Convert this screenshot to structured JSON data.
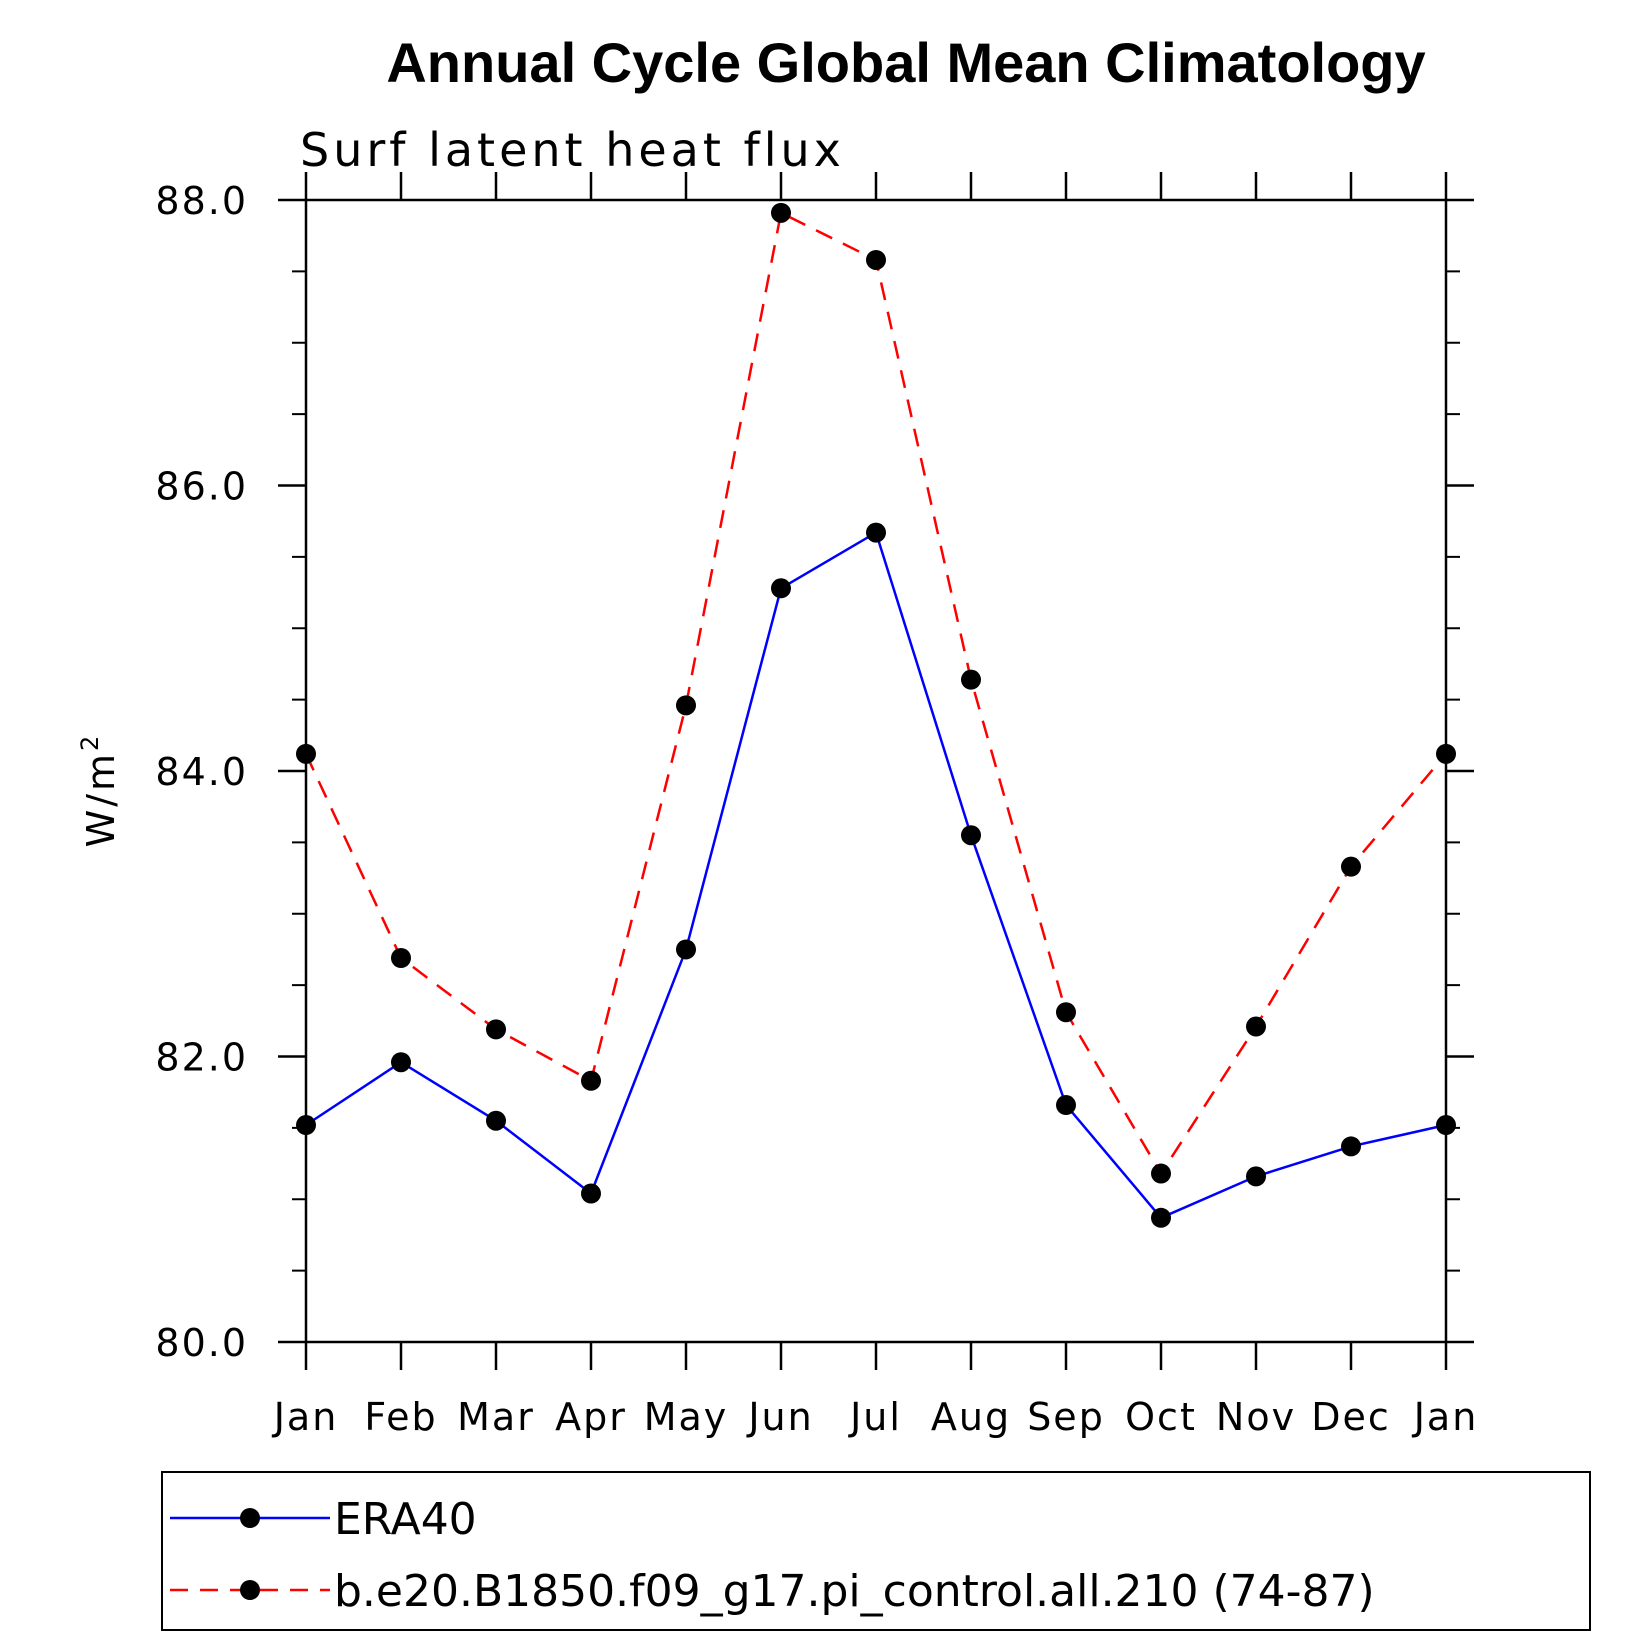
{
  "chart_data": {
    "type": "line",
    "title": "Annual Cycle Global Mean Climatology",
    "subtitle": "Surf latent heat flux",
    "ylabel": "W/m",
    "ylabel_superscript": "2",
    "categories": [
      "Jan",
      "Feb",
      "Mar",
      "Apr",
      "May",
      "Jun",
      "Jul",
      "Aug",
      "Sep",
      "Oct",
      "Nov",
      "Dec",
      "Jan"
    ],
    "ylim": [
      80.0,
      88.0
    ],
    "yticks": [
      "80.0",
      "82.0",
      "84.0",
      "86.0",
      "88.0"
    ],
    "series": [
      {
        "name": "ERA40",
        "color": "#0000ff",
        "dash": "solid",
        "values": [
          81.52,
          81.96,
          81.55,
          81.04,
          82.75,
          85.28,
          85.67,
          83.55,
          81.66,
          80.87,
          81.16,
          81.37,
          81.52
        ]
      },
      {
        "name": "b.e20.B1850.f09_g17.pi_control.all.210 (74-87)",
        "color": "#ff0000",
        "dash": "dashed",
        "values": [
          84.12,
          82.69,
          82.19,
          81.83,
          84.46,
          87.91,
          87.58,
          84.64,
          82.31,
          81.18,
          82.21,
          83.33,
          84.12
        ]
      }
    ],
    "marker": "filled-circle",
    "marker_color": "#000000",
    "legend_position": "bottom"
  }
}
